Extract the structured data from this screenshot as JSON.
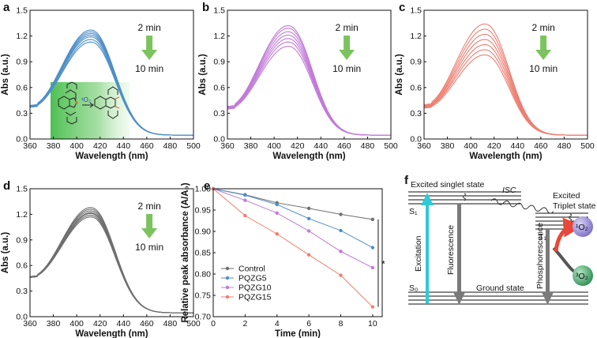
{
  "colors": {
    "blue": "#4f8fc8",
    "purple": "#c27ad8",
    "red": "#ee7d70",
    "gray": "#6f6f6f",
    "arrow_green": "#7cc35f",
    "cyan": "#2fc9d6",
    "inset_green": "#55c458",
    "o2_singlet": "#9a8fd6",
    "o2_triplet": "#3aa76a",
    "red_arrow": "#e8473a"
  },
  "panels": [
    {
      "id": "a",
      "letter": "a",
      "xlabel": "Wavelength (nm)",
      "ylabel": "Abs (a.u.)",
      "xticks": [
        "360",
        "380",
        "400",
        "420",
        "440",
        "460",
        "480",
        "500"
      ],
      "yticks": [
        "0.0",
        "0.3",
        "0.6",
        "0.9",
        "1.2",
        "1.5"
      ],
      "arrow_top": "2 min",
      "arrow_bottom": "10 min",
      "inset_molecule_label": "¹O₂"
    },
    {
      "id": "b",
      "letter": "b",
      "xlabel": "Wavelength (nm)",
      "ylabel": "Abs (a.u.)",
      "xticks": [
        "360",
        "380",
        "400",
        "420",
        "440",
        "460",
        "480",
        "500"
      ],
      "yticks": [
        "0.0",
        "0.3",
        "0.6",
        "0.9",
        "1.2",
        "1.5"
      ],
      "arrow_top": "2 min",
      "arrow_bottom": "10 min"
    },
    {
      "id": "c",
      "letter": "c",
      "xlabel": "Wavelength (nm)",
      "ylabel": "Abs (a.u.)",
      "xticks": [
        "360",
        "380",
        "400",
        "420",
        "440",
        "460",
        "480",
        "500"
      ],
      "yticks": [
        "0.0",
        "0.3",
        "0.6",
        "0.9",
        "1.2",
        "1.5"
      ],
      "arrow_top": "2 min",
      "arrow_bottom": "10 min"
    },
    {
      "id": "d",
      "letter": "d",
      "xlabel": "Wavelength (nm)",
      "ylabel": "Abs (a.u.)",
      "xticks": [
        "360",
        "380",
        "400",
        "420",
        "440",
        "460",
        "480",
        "500"
      ],
      "yticks": [
        "0.0",
        "0.3",
        "0.6",
        "0.9",
        "1.2",
        "1.5"
      ],
      "arrow_top": "2 min",
      "arrow_bottom": "10 min"
    },
    {
      "id": "e",
      "letter": "e",
      "xlabel": "Time (min)",
      "ylabel": "Relative peak absorbance (A/A₀)",
      "xticks": [
        "0",
        "2",
        "4",
        "6",
        "8",
        "10"
      ],
      "yticks": [
        "0.70",
        "0.75",
        "0.80",
        "0.85",
        "0.90",
        "0.95",
        "1.00"
      ],
      "significance": "*"
    },
    {
      "id": "f",
      "letter": "f"
    }
  ],
  "jablonski": {
    "excited_singlet": "Excited singlet state",
    "s1": "S₁",
    "isc": "ISC",
    "excited_triplet_line1": "Excited",
    "excited_triplet_line2": "Triplet state",
    "t1": "T₁",
    "excitation": "Excitation",
    "fluorescence": "Fluorescence",
    "phosphorescence": "Phosphorescence",
    "s0": "S₀",
    "ground_state": "Ground state",
    "singlet_o2": "¹O₂",
    "triplet_o2": "³O₂"
  },
  "chart_data": [
    {
      "panel": "a",
      "type": "line",
      "color_key": "blue",
      "xlabel": "Wavelength (nm)",
      "ylabel": "Abs (a.u.)",
      "xlim": [
        360,
        500
      ],
      "ylim": [
        0.0,
        1.5
      ],
      "peak_x": 412,
      "curve_peaks": [
        1.27,
        1.25,
        1.23,
        1.21,
        1.19,
        1.16,
        1.13
      ],
      "curve_start": [
        0.39,
        0.39,
        0.39,
        0.38,
        0.38,
        0.37,
        0.37
      ]
    },
    {
      "panel": "b",
      "type": "line",
      "color_key": "purple",
      "xlabel": "Wavelength (nm)",
      "ylabel": "Abs (a.u.)",
      "xlim": [
        360,
        500
      ],
      "ylim": [
        0.0,
        1.5
      ],
      "peak_x": 412,
      "curve_peaks": [
        1.32,
        1.29,
        1.25,
        1.21,
        1.17,
        1.13,
        1.08
      ],
      "curve_start": [
        0.38,
        0.37,
        0.37,
        0.36,
        0.36,
        0.35,
        0.35
      ]
    },
    {
      "panel": "c",
      "type": "line",
      "color_key": "red",
      "xlabel": "Wavelength (nm)",
      "ylabel": "Abs (a.u.)",
      "xlim": [
        360,
        500
      ],
      "ylim": [
        0.0,
        1.5
      ],
      "peak_x": 412,
      "curve_peaks": [
        1.34,
        1.28,
        1.22,
        1.16,
        1.1,
        1.04,
        0.98
      ],
      "curve_start": [
        0.4,
        0.39,
        0.38,
        0.38,
        0.37,
        0.37,
        0.36
      ]
    },
    {
      "panel": "d",
      "type": "line",
      "color_key": "gray",
      "xlabel": "Wavelength (nm)",
      "ylabel": "Abs (a.u.)",
      "xlim": [
        360,
        500
      ],
      "ylim": [
        0.0,
        1.5
      ],
      "peak_x": 412,
      "curve_peaks": [
        1.28,
        1.26,
        1.24,
        1.22,
        1.21,
        1.19,
        1.17
      ],
      "curve_start": [
        0.47,
        0.47,
        0.47,
        0.46,
        0.46,
        0.46,
        0.46
      ]
    },
    {
      "panel": "e",
      "type": "line",
      "xlabel": "Time (min)",
      "ylabel": "Relative peak absorbance (A/A₀)",
      "xlim": [
        0,
        10.6
      ],
      "ylim": [
        0.7,
        1.0
      ],
      "x": [
        0,
        2,
        4,
        6,
        8,
        10
      ],
      "legend_position": "bottom-left",
      "series": [
        {
          "name": "Control",
          "color_key": "gray",
          "values": [
            1.0,
            0.986,
            0.967,
            0.954,
            0.94,
            0.928
          ]
        },
        {
          "name": "PQZG5",
          "color_key": "blue",
          "values": [
            1.0,
            0.985,
            0.963,
            0.93,
            0.902,
            0.862
          ]
        },
        {
          "name": "PQZG10",
          "color_key": "purple",
          "values": [
            1.0,
            0.973,
            0.943,
            0.901,
            0.853,
            0.815
          ]
        },
        {
          "name": "PQZG15",
          "color_key": "red",
          "values": [
            1.0,
            0.937,
            0.894,
            0.845,
            0.797,
            0.723
          ]
        }
      ]
    }
  ]
}
